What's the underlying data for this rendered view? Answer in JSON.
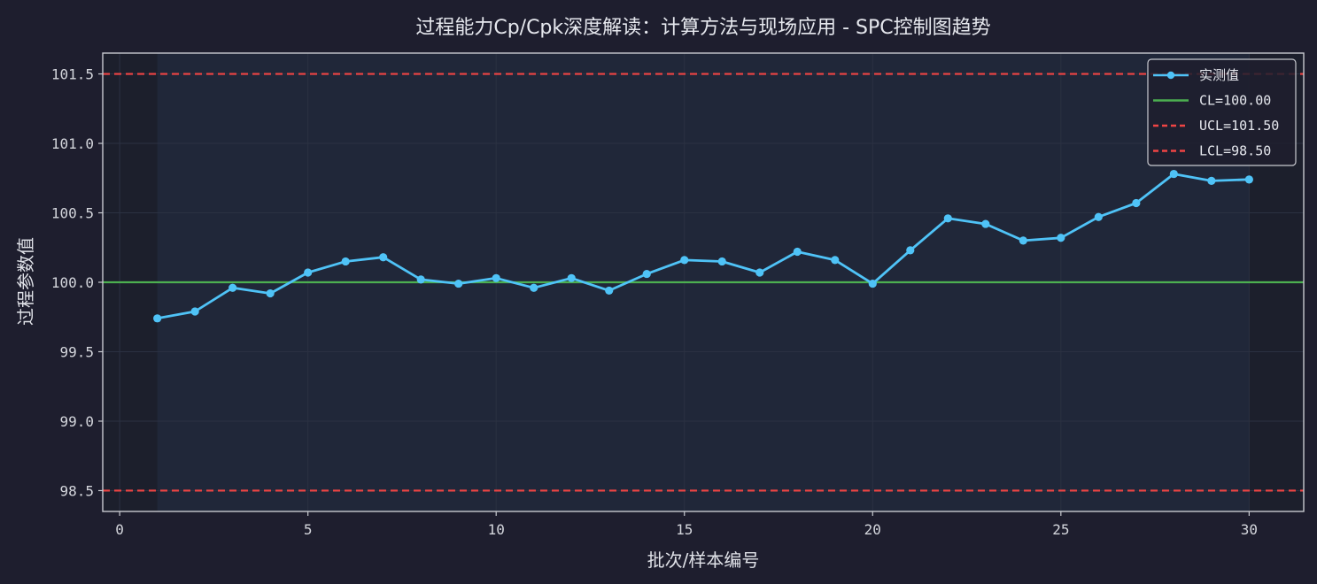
{
  "chart_data": {
    "type": "line",
    "title": "过程能力Cp/Cpk深度解读：计算方法与现场应用 - SPC控制图趋势",
    "xlabel": "批次/样本编号",
    "ylabel": "过程参数值",
    "xlim": [
      -0.45,
      31.45
    ],
    "ylim": [
      98.35,
      101.65
    ],
    "xticks": [
      0,
      5,
      10,
      15,
      20,
      25,
      30
    ],
    "xtick_labels": [
      "0",
      "5",
      "10",
      "15",
      "20",
      "25",
      "30"
    ],
    "yticks": [
      98.5,
      99.0,
      99.5,
      100.0,
      100.5,
      101.0,
      101.5
    ],
    "ytick_labels": [
      "98.5",
      "99.0",
      "99.5",
      "100.0",
      "100.5",
      "101.0",
      "101.5"
    ],
    "grid": true,
    "legend_position": "top-right",
    "shaded_range_x": [
      1,
      30
    ],
    "series": [
      {
        "name": "实测值",
        "color": "#4fc3f7",
        "style": "line-marker",
        "x": [
          1,
          2,
          3,
          4,
          5,
          6,
          7,
          8,
          9,
          10,
          11,
          12,
          13,
          14,
          15,
          16,
          17,
          18,
          19,
          20,
          21,
          22,
          23,
          24,
          25,
          26,
          27,
          28,
          29,
          30
        ],
        "y": [
          99.74,
          99.79,
          99.96,
          99.92,
          100.07,
          100.15,
          100.18,
          100.02,
          99.99,
          100.03,
          99.96,
          100.03,
          99.94,
          100.06,
          100.16,
          100.15,
          100.07,
          100.22,
          100.16,
          99.99,
          100.23,
          100.46,
          100.42,
          100.3,
          100.32,
          100.47,
          100.57,
          100.78,
          100.73,
          100.74
        ]
      }
    ],
    "reference_lines": [
      {
        "name": "CL=100.00",
        "value": 100.0,
        "color": "#4caf50",
        "style": "solid"
      },
      {
        "name": "UCL=101.50",
        "value": 101.5,
        "color": "#ef4444",
        "style": "dashed"
      },
      {
        "name": "LCL=98.50",
        "value": 98.5,
        "color": "#ef4444",
        "style": "dashed"
      }
    ],
    "colors": {
      "figure_bg": "#1e1e2e",
      "plot_bg": "#1c1f2c",
      "shaded_bg": "#202739",
      "grid": "#2b3142",
      "spine": "#c8cad0"
    }
  }
}
